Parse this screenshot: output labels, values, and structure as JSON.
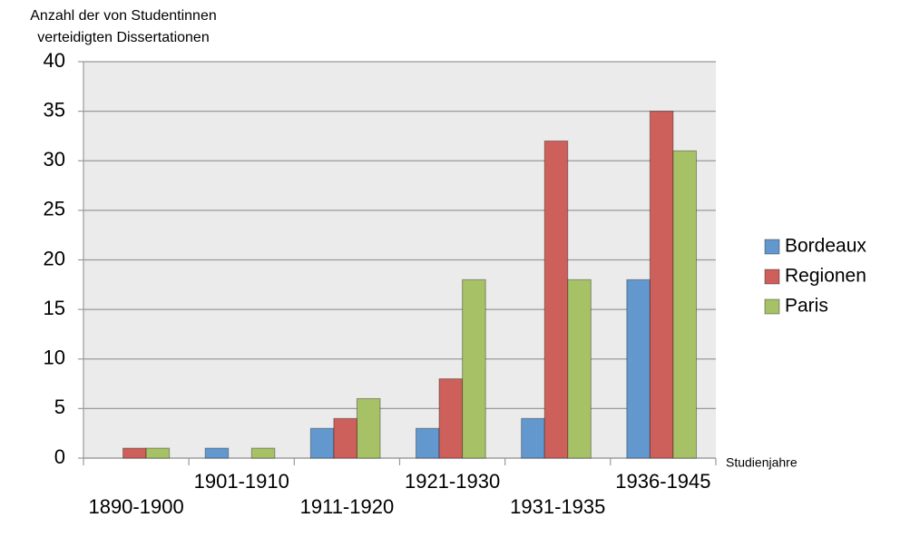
{
  "chart_data": {
    "type": "bar",
    "y_label": "Anzahl der von Studentinnen verteidigten Dissertationen",
    "x_label": "Studienjahre",
    "categories": [
      "1890-1900",
      "1901-1910",
      "1911-1920",
      "1921-1930",
      "1931-1935",
      "1936-1945"
    ],
    "series": [
      {
        "name": "Bordeaux",
        "color": "#6398cf",
        "values": [
          0,
          1,
          3,
          3,
          4,
          18
        ]
      },
      {
        "name": "Regionen",
        "color": "#cd605b",
        "values": [
          1,
          0,
          4,
          8,
          32,
          35
        ]
      },
      {
        "name": "Paris",
        "color": "#a7c166",
        "values": [
          1,
          1,
          6,
          18,
          18,
          31
        ]
      }
    ],
    "ylim": [
      0,
      40
    ],
    "yticks": [
      0,
      5,
      10,
      15,
      20,
      25,
      30,
      35,
      40
    ],
    "grid": true,
    "legend": "right"
  }
}
